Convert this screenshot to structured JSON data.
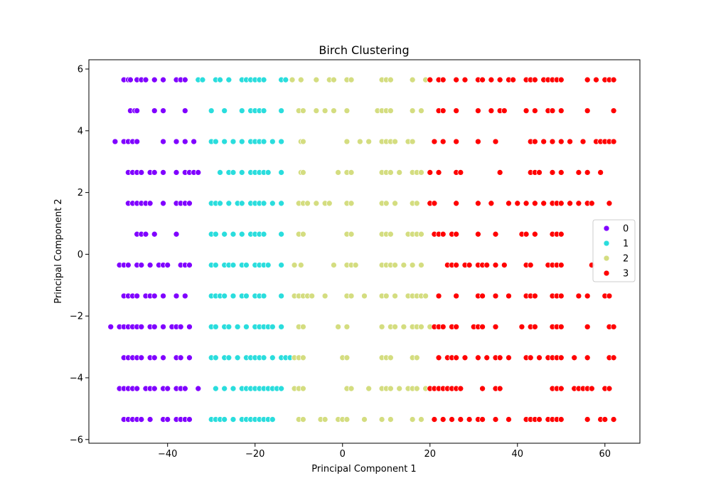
{
  "chart_data": {
    "type": "scatter",
    "title": "Birch Clustering",
    "xlabel": "Principal Component 1",
    "ylabel": "Principal Component 2",
    "xlim": [
      -58,
      68
    ],
    "ylim": [
      -6.12,
      6.3
    ],
    "xticks": [
      -40,
      -20,
      0,
      20,
      40,
      60
    ],
    "yticks": [
      -6,
      -4,
      -2,
      0,
      2,
      4,
      6
    ],
    "xtick_labels": [
      "−40",
      "−20",
      "0",
      "20",
      "40",
      "60"
    ],
    "ytick_labels": [
      "−6",
      "−4",
      "−2",
      "0",
      "2",
      "4",
      "6"
    ],
    "grid": false,
    "legend": {
      "placement": "center-right",
      "entries": [
        "0",
        "1",
        "2",
        "3"
      ]
    },
    "series_colors": [
      "#8000ff",
      "#2adddd",
      "#d4dd80",
      "#ff0000"
    ],
    "rows": [
      {
        "y": 5.65,
        "clusters": [
          [
            -50,
            -49,
            -48.5,
            -47,
            -46,
            -45,
            -43,
            -41,
            -38,
            -37,
            -36
          ],
          [
            -33,
            -32,
            -29,
            -28,
            -26,
            -23,
            -22,
            -21,
            -20,
            -19,
            -18,
            -14,
            -13
          ],
          [
            -11.5,
            -9.5,
            -6,
            -3,
            -2,
            1,
            2,
            9,
            10,
            11,
            16,
            19
          ],
          [
            20,
            22,
            23,
            26,
            28,
            31,
            32,
            34,
            36,
            38,
            39,
            42,
            43,
            44,
            46,
            47,
            48,
            49,
            50,
            56,
            58,
            60,
            61,
            62
          ]
        ]
      },
      {
        "y": 4.65,
        "clusters": [
          [
            -48.5,
            -47.5,
            -47,
            -43,
            -41,
            -36
          ],
          [
            -30,
            -27,
            -23,
            -21,
            -20,
            -19,
            -18,
            -14
          ],
          [
            -10,
            -9,
            -6,
            -4,
            -2,
            1,
            8,
            9,
            10,
            11,
            16,
            18
          ],
          [
            22,
            23,
            26,
            31,
            34,
            36,
            37,
            42,
            44,
            47,
            48,
            50,
            56,
            62
          ]
        ]
      },
      {
        "y": 3.65,
        "clusters": [
          [
            -52,
            -50,
            -49,
            -48,
            -47,
            -41,
            -38,
            -36,
            -34
          ],
          [
            -30,
            -29,
            -27,
            -25,
            -23,
            -21,
            -20,
            -19,
            -18,
            -16,
            -14
          ],
          [
            -9.5,
            -9,
            1,
            4,
            6,
            9,
            10,
            11,
            12,
            15,
            16
          ],
          [
            21,
            23,
            26,
            31,
            35,
            43,
            44,
            46,
            48,
            50,
            52,
            55,
            58,
            59,
            60,
            61,
            62
          ]
        ]
      },
      {
        "y": 2.65,
        "clusters": [
          [
            -49,
            -48,
            -47,
            -46,
            -44,
            -43,
            -41,
            -38,
            -36,
            -35,
            -34,
            -33
          ],
          [
            -28,
            -26,
            -25,
            -23,
            -21,
            -20,
            -19,
            -18,
            -17,
            -14
          ],
          [
            -9.5,
            -9,
            -1,
            1,
            2,
            9,
            10,
            11,
            13,
            16,
            17,
            18
          ],
          [
            20,
            22,
            26,
            27,
            36,
            43,
            44,
            45,
            48,
            50,
            54,
            56,
            59
          ]
        ]
      },
      {
        "y": 1.65,
        "clusters": [
          [
            -49,
            -48,
            -47,
            -46,
            -45,
            -44,
            -41,
            -38,
            -37,
            -36,
            -35
          ],
          [
            -30,
            -29,
            -28,
            -26,
            -24,
            -23,
            -21,
            -20,
            -19,
            -18,
            -16,
            -14
          ],
          [
            -10,
            -9,
            -8,
            -6,
            -4,
            -3,
            1,
            2,
            9,
            10,
            12,
            16,
            17
          ],
          [
            20,
            21,
            26,
            31,
            34,
            38,
            40,
            42,
            44,
            46,
            48,
            49,
            50,
            52,
            54,
            56,
            57,
            61
          ]
        ]
      },
      {
        "y": 0.65,
        "clusters": [
          [
            -47,
            -46,
            -45,
            -43,
            -38
          ],
          [
            -30,
            -29,
            -27,
            -25,
            -23,
            -21,
            -20,
            -19,
            -18,
            -14
          ],
          [
            -10,
            -9,
            1,
            2,
            9,
            10,
            11,
            15,
            16,
            17,
            18
          ],
          [
            21,
            22,
            23,
            25,
            26,
            31,
            35,
            41,
            42,
            44,
            48,
            49,
            50
          ]
        ]
      },
      {
        "y": -0.35,
        "clusters": [
          [
            -51,
            -50,
            -49,
            -47,
            -46,
            -44,
            -42,
            -41,
            -40,
            -37,
            -36,
            -35
          ],
          [
            -30,
            -29,
            -27,
            -26,
            -25,
            -23,
            -22,
            -20,
            -19,
            -18,
            -17,
            -14
          ],
          [
            -11,
            -9.5,
            -2,
            1,
            2,
            3,
            9,
            10,
            11,
            12,
            14,
            16,
            18
          ],
          [
            24,
            25,
            26,
            28,
            29,
            31,
            32,
            33,
            35,
            37,
            42,
            43,
            47,
            48,
            49,
            50,
            57
          ]
        ]
      },
      {
        "y": -1.35,
        "clusters": [
          [
            -50,
            -49,
            -48,
            -47,
            -45,
            -44,
            -43,
            -41,
            -38,
            -36
          ],
          [
            -30,
            -29,
            -28,
            -27,
            -25,
            -23,
            -22,
            -20,
            -19,
            -18,
            -14
          ],
          [
            -11,
            -10,
            -9,
            -8,
            -7,
            -4,
            1,
            2,
            5,
            9,
            10,
            12,
            15,
            16,
            17,
            18,
            19
          ],
          [
            22,
            26,
            31,
            32,
            35,
            38,
            42,
            43,
            44,
            48,
            49,
            50,
            54,
            56,
            60,
            61
          ]
        ]
      },
      {
        "y": -2.35,
        "clusters": [
          [
            -53,
            -51,
            -50,
            -49,
            -48,
            -47,
            -46,
            -44,
            -43,
            -41,
            -39,
            -38,
            -37,
            -35
          ],
          [
            -30,
            -29,
            -27,
            -26,
            -24,
            -22,
            -20,
            -19,
            -18,
            -17,
            -16,
            -14
          ],
          [
            -10,
            -9,
            -1,
            1,
            9,
            11,
            12,
            14,
            16,
            17,
            18,
            20
          ],
          [
            21,
            22,
            23,
            25,
            26,
            30,
            31,
            32,
            35,
            41,
            43,
            44,
            48,
            49,
            50,
            56,
            61,
            62
          ]
        ]
      },
      {
        "y": -3.35,
        "clusters": [
          [
            -50,
            -49,
            -48,
            -47,
            -46,
            -44,
            -43,
            -41,
            -38,
            -37,
            -35
          ],
          [
            -30,
            -29,
            -27,
            -26,
            -24,
            -22,
            -21,
            -20,
            -19,
            -18,
            -16,
            -14,
            -13,
            -12
          ],
          [
            -11,
            -10,
            -9,
            0,
            1,
            9,
            10,
            11,
            16,
            17
          ],
          [
            22,
            24,
            25,
            26,
            28,
            31,
            33,
            35,
            36,
            38,
            42,
            43,
            45,
            47,
            48,
            49,
            50,
            53,
            56,
            61,
            62
          ]
        ]
      },
      {
        "y": -4.35,
        "clusters": [
          [
            -51,
            -50,
            -49,
            -48,
            -47,
            -45,
            -44,
            -43,
            -41,
            -40,
            -38,
            -37,
            -36,
            -33
          ],
          [
            -29,
            -27,
            -25,
            -23,
            -22,
            -21,
            -20,
            -19,
            -18,
            -17,
            -16,
            -15,
            -14
          ],
          [
            -11,
            -10,
            -9,
            1,
            2,
            6,
            9,
            10,
            11,
            13,
            15,
            16,
            17,
            19
          ],
          [
            20,
            21,
            22,
            23,
            24,
            25,
            26,
            27,
            32,
            35,
            36,
            48,
            49,
            50,
            53,
            54,
            55,
            56,
            57,
            60,
            61
          ]
        ]
      },
      {
        "y": -5.35,
        "clusters": [
          [
            -50,
            -49,
            -48,
            -47,
            -46,
            -44,
            -41,
            -40,
            -38,
            -37,
            -36,
            -35
          ],
          [
            -30,
            -29,
            -28,
            -27,
            -25,
            -23,
            -22,
            -21,
            -20,
            -19,
            -18,
            -17,
            -16
          ],
          [
            -10,
            -9,
            -5,
            -4,
            -1,
            0,
            1,
            5,
            9,
            11,
            16,
            18
          ],
          [
            21,
            23,
            25,
            27,
            29,
            31,
            32,
            35,
            38,
            42,
            43,
            44,
            45,
            47,
            48,
            49,
            50,
            56,
            59,
            60,
            62
          ]
        ]
      }
    ]
  }
}
